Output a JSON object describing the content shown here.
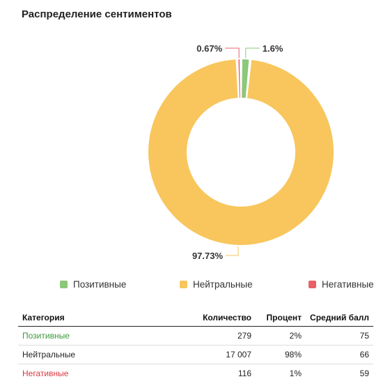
{
  "chart_data": {
    "type": "pie",
    "title": "Распределение сентиментов",
    "slices": [
      {
        "name": "Позитивные",
        "value": 1.6,
        "label": "1.6%",
        "color": "#8BC87A"
      },
      {
        "name": "Нейтральные",
        "value": 97.73,
        "label": "97.73%",
        "color": "#F8C65D"
      },
      {
        "name": "Негативные",
        "value": 0.67,
        "label": "0.67%",
        "color": "#E8606A"
      }
    ],
    "legend_position": "bottom"
  },
  "table": {
    "headers": [
      "Категория",
      "Количество",
      "Процент",
      "Средний балл"
    ],
    "rows": [
      {
        "category": "Позитивные",
        "count": "279",
        "percent": "2%",
        "avg": "75",
        "color": "#3a9a3a"
      },
      {
        "category": "Нейтральные",
        "count": "17 007",
        "percent": "98%",
        "avg": "66",
        "color": "#222222"
      },
      {
        "category": "Негативные",
        "count": "116",
        "percent": "1%",
        "avg": "59",
        "color": "#d9383f"
      }
    ]
  }
}
